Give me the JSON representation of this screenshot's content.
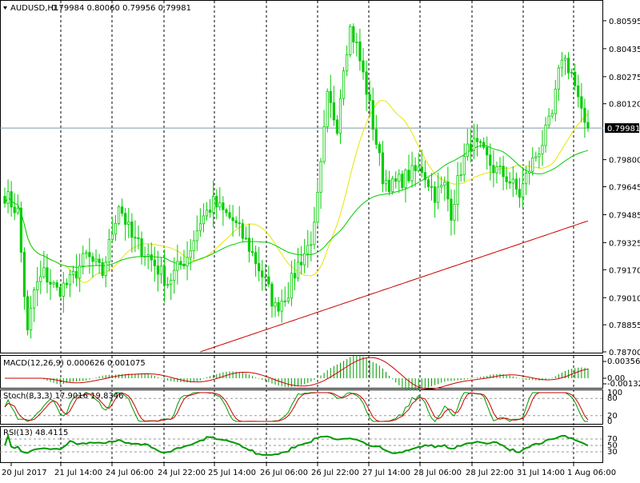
{
  "header": {
    "symbol": "AUDUSD,H1",
    "ohlc": "0.79984 0.80060 0.79956 0.79981"
  },
  "colors": {
    "bull_candle": "#00cc00",
    "bear_candle": "#00cc00",
    "ma_fast": "#e6e600",
    "ma_mid": "#00cc00",
    "ma_slow": "#cc0000",
    "grid": "#000000",
    "osc_main": "#009900",
    "osc_signal": "#cc0000"
  },
  "chart_data": [
    {
      "type": "candlestick",
      "title": "AUDUSD,H1",
      "ylim": [
        0.787,
        0.807
      ],
      "y_ticks": [
        "0.80595",
        "0.80435",
        "0.80275",
        "0.80120",
        "0.79800",
        "0.79645",
        "0.79485",
        "0.79325",
        "0.79170",
        "0.79010",
        "0.78855",
        "0.78700"
      ],
      "current_price_label": "0.79981",
      "current_price": 0.79981,
      "x_ticks": [
        "20 Jul 2017",
        "21 Jul 14:00",
        "24 Jul 06:00",
        "24 Jul 22:00",
        "25 Jul 14:00",
        "26 Jul 06:00",
        "26 Jul 22:00",
        "27 Jul 14:00",
        "28 Jul 06:00",
        "28 Jul 22:00",
        "31 Jul 14:00",
        "1 Aug 06:00"
      ],
      "close_anchors": [
        [
          0,
          0.796
        ],
        [
          4,
          0.795
        ],
        [
          7,
          0.788
        ],
        [
          9,
          0.7905
        ],
        [
          12,
          0.7915
        ],
        [
          16,
          0.7905
        ],
        [
          20,
          0.791
        ],
        [
          25,
          0.7925
        ],
        [
          30,
          0.7915
        ],
        [
          35,
          0.7955
        ],
        [
          39,
          0.7935
        ],
        [
          44,
          0.7925
        ],
        [
          50,
          0.791
        ],
        [
          56,
          0.7925
        ],
        [
          60,
          0.7945
        ],
        [
          64,
          0.7955
        ],
        [
          70,
          0.7945
        ],
        [
          75,
          0.793
        ],
        [
          80,
          0.791
        ],
        [
          83,
          0.7895
        ],
        [
          87,
          0.7905
        ],
        [
          90,
          0.792
        ],
        [
          93,
          0.793
        ],
        [
          95,
          0.794
        ],
        [
          97,
          0.7975
        ],
        [
          99,
          0.8015
        ],
        [
          102,
          0.8
        ],
        [
          104,
          0.8035
        ],
        [
          106,
          0.8055
        ],
        [
          108,
          0.8045
        ],
        [
          111,
          0.802
        ],
        [
          113,
          0.8
        ],
        [
          116,
          0.797
        ],
        [
          119,
          0.7965
        ],
        [
          123,
          0.797
        ],
        [
          128,
          0.7975
        ],
        [
          132,
          0.796
        ],
        [
          135,
          0.7965
        ],
        [
          137,
          0.795
        ],
        [
          140,
          0.7975
        ],
        [
          143,
          0.799
        ],
        [
          146,
          0.7985
        ],
        [
          150,
          0.7975
        ],
        [
          154,
          0.797
        ],
        [
          158,
          0.796
        ],
        [
          161,
          0.7975
        ],
        [
          165,
          0.799
        ],
        [
          168,
          0.8005
        ],
        [
          171,
          0.804
        ],
        [
          174,
          0.803
        ],
        [
          177,
          0.8005
        ],
        [
          179,
          0.7998
        ]
      ],
      "moving_averages": [
        "fast",
        "mid",
        "slow"
      ]
    },
    {
      "type": "macd",
      "title": "MACD(12,26,9) 0.000626 0.001075",
      "y_ticks": [
        "0.003563",
        "0.00",
        "-0.00132"
      ]
    },
    {
      "type": "stochastic",
      "title": "Stoch(8,3,3) 17.9016 19.8346",
      "y_ticks": [
        "100",
        "80",
        "20",
        "0"
      ],
      "levels": [
        80,
        20
      ]
    },
    {
      "type": "rsi",
      "title": "RSI(13) 48.4115",
      "y_ticks": [
        "70",
        "50",
        "30"
      ],
      "levels": [
        70,
        50,
        30
      ]
    }
  ]
}
